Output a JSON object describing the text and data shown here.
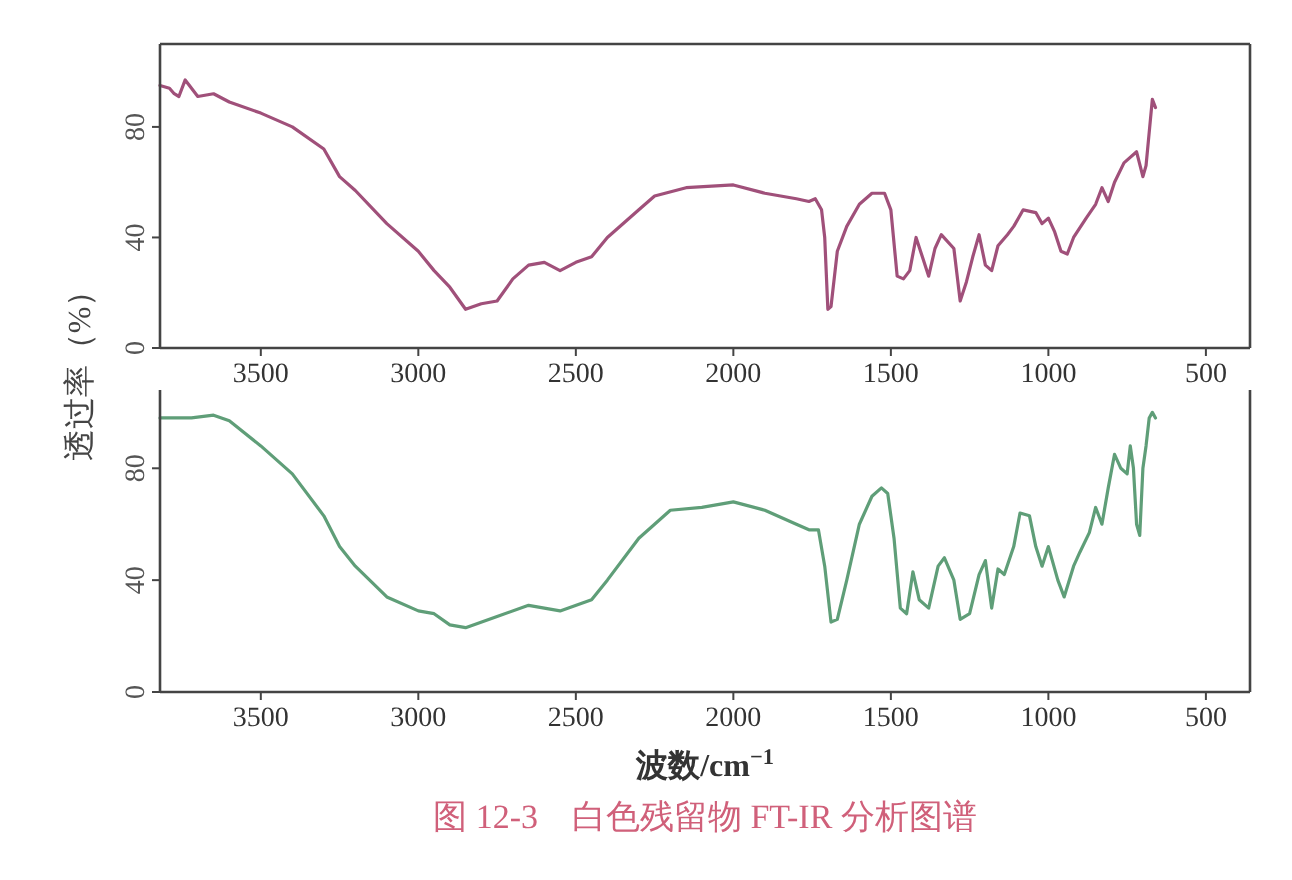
{
  "chart_data": [
    {
      "type": "line",
      "ylabel": "透过率（%）",
      "xlim": [
        3820,
        360
      ],
      "ylim": [
        0,
        110
      ],
      "yticks": [
        0,
        40,
        80
      ],
      "xticks": [
        3500,
        3000,
        2500,
        2000,
        1500,
        1000,
        500
      ],
      "grid": false,
      "x": [
        3820,
        3790,
        3775,
        3760,
        3740,
        3700,
        3650,
        3600,
        3500,
        3400,
        3300,
        3250,
        3200,
        3100,
        3000,
        2950,
        2900,
        2850,
        2800,
        2750,
        2700,
        2650,
        2600,
        2550,
        2500,
        2450,
        2400,
        2300,
        2250,
        2150,
        2000,
        1900,
        1800,
        1760,
        1740,
        1720,
        1710,
        1700,
        1690,
        1670,
        1640,
        1600,
        1560,
        1520,
        1500,
        1480,
        1460,
        1440,
        1420,
        1400,
        1380,
        1360,
        1340,
        1300,
        1280,
        1260,
        1240,
        1220,
        1200,
        1180,
        1160,
        1130,
        1110,
        1080,
        1040,
        1020,
        1000,
        980,
        960,
        940,
        920,
        880,
        850,
        830,
        810,
        790,
        760,
        720,
        700,
        690,
        680,
        670,
        660
      ],
      "series": [
        {
          "color": "#a0507a",
          "values": [
            95,
            94,
            92,
            91,
            97,
            91,
            92,
            89,
            85,
            80,
            72,
            62,
            57,
            45,
            35,
            28,
            22,
            14,
            16,
            17,
            25,
            30,
            31,
            28,
            31,
            33,
            40,
            50,
            55,
            58,
            59,
            56,
            54,
            53,
            54,
            50,
            40,
            14,
            15,
            35,
            44,
            52,
            56,
            56,
            50,
            26,
            25,
            28,
            40,
            33,
            26,
            36,
            41,
            36,
            17,
            24,
            33,
            41,
            30,
            28,
            37,
            41,
            44,
            50,
            49,
            45,
            47,
            42,
            35,
            34,
            40,
            47,
            52,
            58,
            53,
            60,
            67,
            71,
            62,
            66,
            78,
            90,
            87
          ]
        }
      ]
    },
    {
      "type": "line",
      "xlabel": "波数/cm$^{−1}$",
      "xlim": [
        3820,
        360
      ],
      "ylim": [
        0,
        108
      ],
      "yticks": [
        0,
        40,
        80
      ],
      "xticks": [
        3500,
        3000,
        2500,
        2000,
        1500,
        1000,
        500
      ],
      "grid": false,
      "annotations": [
        "图 12-3　白色残留物 FT-IR 分析图谱"
      ],
      "x": [
        3820,
        3720,
        3650,
        3600,
        3500,
        3400,
        3300,
        3250,
        3200,
        3100,
        3000,
        2950,
        2900,
        2850,
        2750,
        2650,
        2550,
        2450,
        2400,
        2300,
        2250,
        2200,
        2100,
        2000,
        1900,
        1800,
        1760,
        1730,
        1710,
        1690,
        1670,
        1640,
        1600,
        1560,
        1530,
        1510,
        1490,
        1470,
        1450,
        1430,
        1410,
        1380,
        1350,
        1330,
        1300,
        1280,
        1250,
        1220,
        1200,
        1180,
        1160,
        1140,
        1110,
        1090,
        1060,
        1040,
        1020,
        1000,
        970,
        950,
        920,
        900,
        870,
        850,
        830,
        810,
        790,
        770,
        750,
        740,
        730,
        720,
        710,
        700,
        690,
        680,
        670,
        660
      ],
      "series": [
        {
          "color": "#5f9e78",
          "values": [
            98,
            98,
            99,
            97,
            88,
            78,
            63,
            52,
            45,
            34,
            29,
            28,
            24,
            23,
            27,
            31,
            29,
            33,
            40,
            55,
            60,
            65,
            66,
            68,
            65,
            60,
            58,
            58,
            45,
            25,
            26,
            40,
            60,
            70,
            73,
            71,
            55,
            30,
            28,
            43,
            33,
            30,
            45,
            48,
            40,
            26,
            28,
            42,
            47,
            30,
            44,
            42,
            52,
            64,
            63,
            52,
            45,
            52,
            40,
            34,
            45,
            50,
            57,
            66,
            60,
            73,
            85,
            80,
            78,
            88,
            80,
            60,
            56,
            80,
            88,
            98,
            100,
            98
          ]
        }
      ]
    }
  ]
}
